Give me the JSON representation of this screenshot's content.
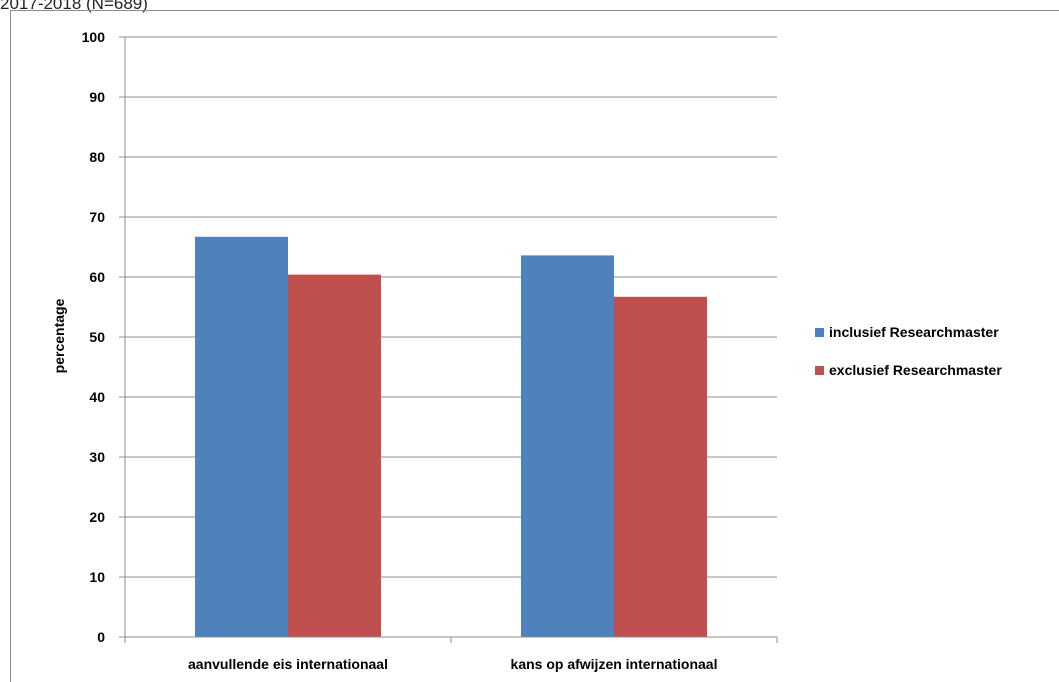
{
  "caption": "2017-2018 (N=689)",
  "chart_data": {
    "type": "bar",
    "categories": [
      "aanvullende eis internationaal",
      "kans op afwijzen internationaal"
    ],
    "series": [
      {
        "name": "inclusief Researchmaster",
        "values": [
          66.7,
          63.6
        ],
        "color": "#4f81bd"
      },
      {
        "name": "exclusief Researchmaster",
        "values": [
          60.4,
          56.7
        ],
        "color": "#c0504d"
      }
    ],
    "xlabel": "",
    "ylabel": "percentage",
    "ylim": [
      0,
      100
    ],
    "yticks": [
      0,
      10,
      20,
      30,
      40,
      50,
      60,
      70,
      80,
      90,
      100
    ],
    "grid": true,
    "legend_position": "right"
  }
}
